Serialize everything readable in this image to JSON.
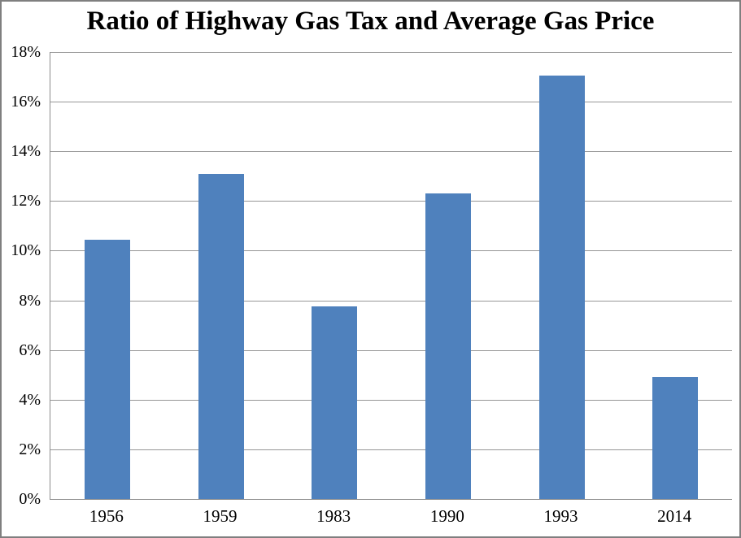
{
  "chart_data": {
    "type": "bar",
    "title": "Ratio of Highway Gas Tax and Average Gas Price",
    "xlabel": "",
    "ylabel": "",
    "categories": [
      "1956",
      "1959",
      "1983",
      "1990",
      "1993",
      "2014"
    ],
    "values": [
      10.45,
      13.1,
      7.75,
      12.3,
      17.05,
      4.9
    ],
    "value_unit": "%",
    "ylim": [
      0,
      18
    ],
    "ytick_step": 2,
    "ytick_values": [
      0,
      2,
      4,
      6,
      8,
      10,
      12,
      14,
      16,
      18
    ],
    "ytick_labels": [
      "0%",
      "2%",
      "4%",
      "6%",
      "8%",
      "10%",
      "12%",
      "14%",
      "16%",
      "18%"
    ],
    "grid": "horizontal",
    "legend": "none",
    "colors": {
      "bar_fill": "#4F81BD",
      "gridline": "#969696",
      "axis_line": "#8c8c8c",
      "frame_border": "#7f7f7f",
      "text": "#000000",
      "background": "#ffffff"
    }
  }
}
